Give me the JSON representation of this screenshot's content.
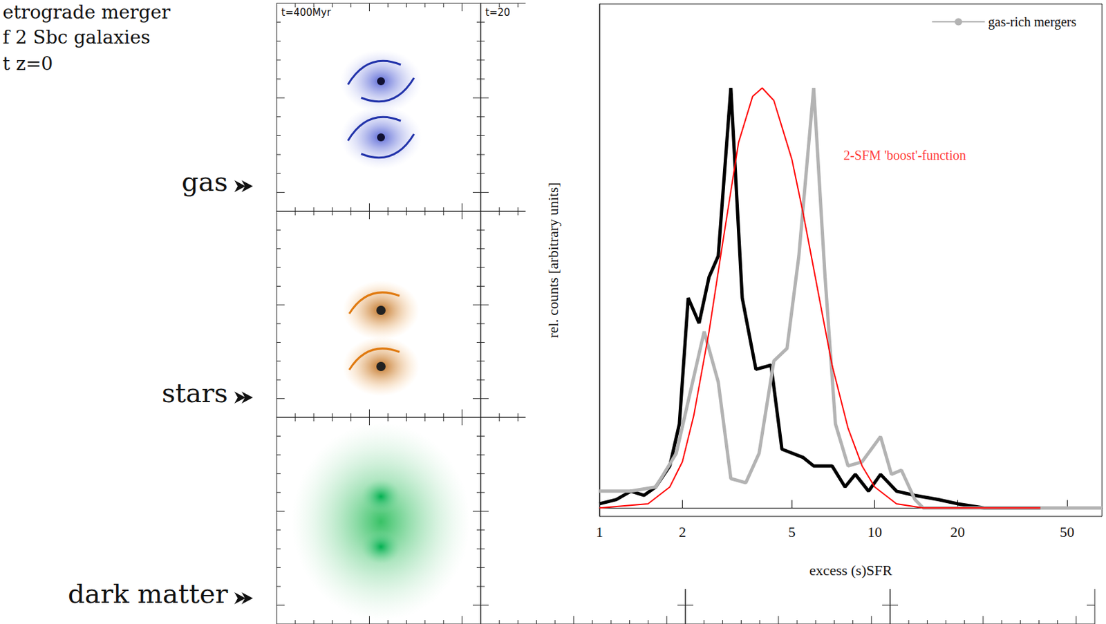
{
  "slide": {
    "caption_lines": [
      "etrograde merger",
      "f 2 Sbc galaxies",
      "t z=0"
    ],
    "panel_times": [
      "t=400Myr",
      "t=20"
    ],
    "row_labels": [
      "gas",
      "stars",
      "dark matter"
    ]
  },
  "chart_data": {
    "type": "line",
    "x_label": "excess (s)SFR",
    "y_label": "rel. counts [arbitrary units]",
    "log": "x",
    "xlim": [
      1,
      67
    ],
    "ylim": [
      -0.02,
      1.2
    ],
    "xticks": [
      1,
      2,
      5,
      10,
      20,
      50
    ],
    "tick_labels": "x",
    "legend": "top-right",
    "series": [
      {
        "color": "#000000",
        "x": [
          1.0,
          1.15,
          1.3,
          1.45,
          1.6,
          1.8,
          1.95,
          2.1,
          2.3,
          2.5,
          2.7,
          3.0,
          3.3,
          3.7,
          4.2,
          4.6,
          5.5,
          6.0,
          7.0,
          7.8,
          8.5,
          9.5,
          10.5,
          12,
          14,
          17,
          20,
          25,
          40
        ],
        "values": [
          0.01,
          0.02,
          0.04,
          0.03,
          0.05,
          0.1,
          0.2,
          0.5,
          0.44,
          0.55,
          0.6,
          1.0,
          0.5,
          0.33,
          0.34,
          0.14,
          0.12,
          0.1,
          0.1,
          0.05,
          0.08,
          0.04,
          0.08,
          0.04,
          0.03,
          0.02,
          0.01,
          0,
          0
        ]
      },
      {
        "name": "gas-rich mergers",
        "color": "#b3b3b3",
        "x": [
          1.0,
          1.3,
          1.6,
          1.9,
          2.4,
          2.7,
          3.0,
          3.4,
          3.8,
          4.3,
          4.8,
          5.3,
          6.0,
          6.6,
          7.2,
          8.0,
          9.0,
          10.5,
          11.5,
          12.5,
          14,
          15,
          20,
          67
        ],
        "values": [
          0.04,
          0.04,
          0.05,
          0.13,
          0.42,
          0.3,
          0.07,
          0.06,
          0.13,
          0.35,
          0.38,
          0.6,
          1.0,
          0.55,
          0.2,
          0.1,
          0.11,
          0.17,
          0.08,
          0.09,
          0.02,
          0,
          0,
          0
        ]
      },
      {
        "color": "#ff0000",
        "x": [
          1.0,
          1.5,
          1.8,
          2.0,
          2.2,
          2.5,
          2.8,
          3.2,
          3.6,
          3.9,
          4.3,
          5.0,
          5.5,
          6.0,
          6.5,
          7.0,
          8.0,
          9.0,
          10,
          12,
          15,
          40
        ],
        "values": [
          0,
          0.01,
          0.05,
          0.11,
          0.22,
          0.42,
          0.63,
          0.87,
          0.98,
          1.0,
          0.97,
          0.83,
          0.7,
          0.57,
          0.45,
          0.34,
          0.19,
          0.1,
          0.05,
          0.01,
          0,
          0
        ]
      }
    ],
    "annotations": [
      {
        "text": "2-SFM 'boost'-function",
        "x": 7.7,
        "y": 0.84,
        "color": "#ff0000"
      }
    ]
  }
}
